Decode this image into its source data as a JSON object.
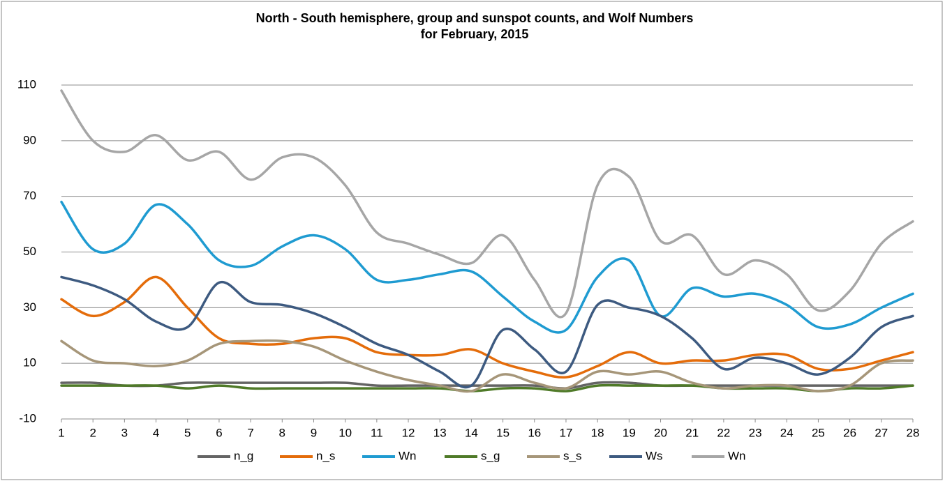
{
  "chart_data": {
    "type": "line",
    "title": "North - South hemisphere, group and sunspot counts, and Wolf Numbers",
    "subtitle": "for February, 2015",
    "x": [
      1,
      2,
      3,
      4,
      5,
      6,
      7,
      8,
      9,
      10,
      11,
      12,
      13,
      14,
      15,
      16,
      17,
      18,
      19,
      20,
      21,
      22,
      23,
      24,
      25,
      26,
      27,
      28
    ],
    "xlim": [
      1,
      28
    ],
    "xticks": [
      1,
      2,
      3,
      4,
      5,
      6,
      7,
      8,
      9,
      10,
      11,
      12,
      13,
      14,
      15,
      16,
      17,
      18,
      19,
      20,
      21,
      22,
      23,
      24,
      25,
      26,
      27,
      28
    ],
    "ylim": [
      -10,
      110
    ],
    "yticks": [
      -10,
      10,
      30,
      50,
      70,
      90,
      110
    ],
    "grid": true,
    "legend": "bottom",
    "series": [
      {
        "name": "n_g",
        "color": "#646464",
        "values": [
          3,
          3,
          2,
          2,
          3,
          3,
          3,
          3,
          3,
          3,
          2,
          2,
          2,
          2,
          2,
          2,
          1,
          3,
          3,
          2,
          2,
          2,
          2,
          2,
          2,
          2,
          2,
          2
        ]
      },
      {
        "name": "n_s",
        "color": "#e46c0a",
        "values": [
          33,
          27,
          32,
          41,
          30,
          19,
          17,
          17,
          19,
          19,
          14,
          13,
          13,
          15,
          10,
          7,
          5,
          9,
          14,
          10,
          11,
          11,
          13,
          13,
          8,
          8,
          11,
          14
        ]
      },
      {
        "name": "Wn",
        "color": "#1f9bd1",
        "values": [
          68,
          51,
          53,
          67,
          60,
          47,
          45,
          52,
          56,
          51,
          40,
          40,
          42,
          43,
          34,
          25,
          22,
          41,
          47,
          27,
          37,
          34,
          35,
          31,
          23,
          24,
          30,
          35
        ]
      },
      {
        "name": "s_g",
        "color": "#4f7a28",
        "values": [
          2,
          2,
          2,
          2,
          1,
          2,
          1,
          1,
          1,
          1,
          1,
          1,
          1,
          0,
          1,
          1,
          0,
          2,
          2,
          2,
          2,
          1,
          1,
          1,
          0,
          1,
          1,
          2
        ]
      },
      {
        "name": "s_s",
        "color": "#a69679",
        "values": [
          18,
          11,
          10,
          9,
          11,
          17,
          18,
          18,
          16,
          11,
          7,
          4,
          2,
          0,
          6,
          3,
          1,
          7,
          6,
          7,
          3,
          1,
          2,
          2,
          0,
          2,
          10,
          11
        ]
      },
      {
        "name": "Ws",
        "color": "#3d5a80",
        "values": [
          41,
          38,
          33,
          25,
          23,
          39,
          32,
          31,
          28,
          23,
          17,
          13,
          7,
          2,
          22,
          15,
          7,
          31,
          30,
          27,
          19,
          8,
          12,
          10,
          6,
          12,
          23,
          27
        ]
      },
      {
        "name": "Wn",
        "color": "#a6a6a6",
        "values": [
          108,
          90,
          86,
          92,
          83,
          86,
          76,
          84,
          84,
          74,
          57,
          53,
          49,
          46,
          56,
          40,
          28,
          74,
          77,
          54,
          56,
          42,
          47,
          42,
          29,
          36,
          53,
          61
        ]
      }
    ]
  }
}
